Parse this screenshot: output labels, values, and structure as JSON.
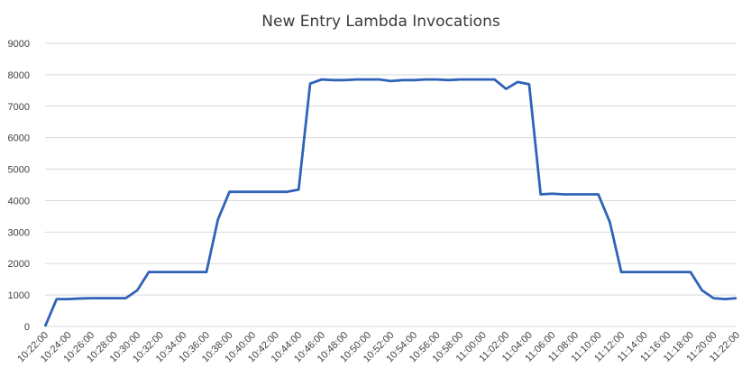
{
  "chart_data": {
    "type": "line",
    "title": "New Entry Lambda Invocations",
    "xlabel": "",
    "ylabel": "",
    "ylim": [
      0,
      9000
    ],
    "yticks": [
      0,
      1000,
      2000,
      3000,
      4000,
      5000,
      6000,
      7000,
      8000,
      9000
    ],
    "grid": true,
    "legend": "none",
    "series_color": "#2e63b8",
    "xtick_labels": [
      "10:22:00",
      "10:24:00",
      "10:26:00",
      "10:28:00",
      "10:30:00",
      "10:32:00",
      "10:34:00",
      "10:36:00",
      "10:38:00",
      "10:40:00",
      "10:42:00",
      "10:44:00",
      "10:46:00",
      "10:48:00",
      "10:50:00",
      "10:52:00",
      "10:54:00",
      "10:56:00",
      "10:58:00",
      "11:00:00",
      "11:02:00",
      "11:04:00",
      "11:06:00",
      "11:08:00",
      "11:10:00",
      "11:12:00",
      "11:14:00",
      "11:16:00",
      "11:18:00",
      "11:20:00",
      "11:22:00"
    ],
    "x": [
      "10:22:00",
      "10:23:00",
      "10:24:00",
      "10:25:00",
      "10:26:00",
      "10:27:00",
      "10:28:00",
      "10:29:00",
      "10:30:00",
      "10:31:00",
      "10:32:00",
      "10:33:00",
      "10:34:00",
      "10:35:00",
      "10:36:00",
      "10:37:00",
      "10:38:00",
      "10:39:00",
      "10:40:00",
      "10:41:00",
      "10:42:00",
      "10:43:00",
      "10:44:00",
      "10:45:00",
      "10:46:00",
      "10:47:00",
      "10:48:00",
      "10:49:00",
      "10:50:00",
      "10:51:00",
      "10:52:00",
      "10:53:00",
      "10:54:00",
      "10:55:00",
      "10:56:00",
      "10:57:00",
      "10:58:00",
      "10:59:00",
      "11:00:00",
      "11:01:00",
      "11:02:00",
      "11:03:00",
      "11:04:00",
      "11:05:00",
      "11:06:00",
      "11:07:00",
      "11:08:00",
      "11:09:00",
      "11:10:00",
      "11:11:00",
      "11:12:00",
      "11:13:00",
      "11:14:00",
      "11:15:00",
      "11:16:00",
      "11:17:00",
      "11:18:00",
      "11:19:00",
      "11:20:00",
      "11:21:00",
      "11:22:00"
    ],
    "values": [
      0,
      870,
      870,
      890,
      900,
      900,
      900,
      900,
      1150,
      1730,
      1730,
      1730,
      1730,
      1730,
      1730,
      3400,
      4280,
      4280,
      4280,
      4280,
      4280,
      4280,
      4350,
      7720,
      7850,
      7830,
      7830,
      7850,
      7850,
      7850,
      7800,
      7830,
      7830,
      7850,
      7850,
      7830,
      7850,
      7850,
      7850,
      7850,
      7550,
      7770,
      7700,
      4200,
      4220,
      4200,
      4200,
      4200,
      4200,
      3320,
      1730,
      1730,
      1730,
      1730,
      1730,
      1730,
      1730,
      1150,
      900,
      870,
      900
    ]
  }
}
